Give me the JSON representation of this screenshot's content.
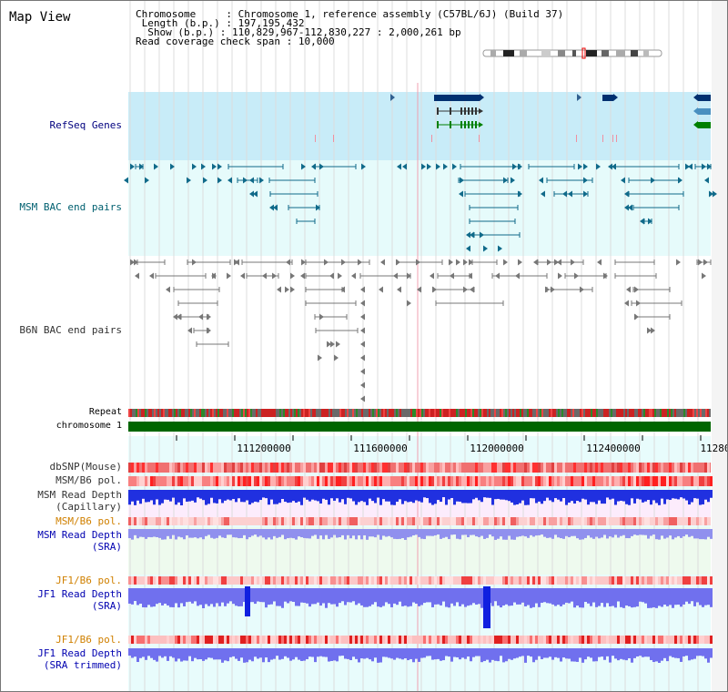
{
  "title": "Map View",
  "info": {
    "chromosome_key": "Chromosome",
    "chromosome_val": "Chromosome 1, reference assembly (C57BL/6J) (Build 37)",
    "length_key": "Length (b.p.)",
    "length_val": "197,195,432",
    "show_key": "Show (b.p.)",
    "show_val": "110,829,967-112,830,227 : 2,000,261 bp",
    "coverage_key": "Read coverage check span",
    "coverage_val": "10,000"
  },
  "tracks": {
    "refseq": "RefSeq Genes",
    "msm_bac": "MSM BAC end pairs",
    "b6n_bac": "B6N BAC end pairs",
    "repeat": "Repeat",
    "chromosome": "chromosome 1",
    "dbsnp": "dbSNP(Mouse)",
    "msm_pol": "MSM/B6 pol.",
    "msm_depth_cap_1": "MSM Read Depth",
    "msm_depth_cap_2": "(Capillary)",
    "msm_pol_sra": "MSM/B6 pol.",
    "msm_depth_sra_1": "MSM Read Depth",
    "msm_depth_sra_2": "(SRA)",
    "jf1_pol": "JF1/B6 pol.",
    "jf1_depth_1": "JF1 Read Depth",
    "jf1_depth_2": "(SRA)",
    "jf1_pol_trim": "JF1/B6 pol.",
    "jf1_trim_1": "JF1 Read Depth",
    "jf1_trim_2": "(SRA trimmed)"
  },
  "axis": {
    "ticks": [
      "111200000",
      "111600000",
      "112000000",
      "112400000",
      "11280"
    ]
  },
  "colors": {
    "refseq_bg": "#c8ecf8",
    "msm_bg": "#e6fbfb",
    "navy_gene": "#003070",
    "green_gene": "#008000",
    "chromosome_bar": "#006600",
    "bac_teal": "#106a8a",
    "bac_gray": "#777777"
  }
}
